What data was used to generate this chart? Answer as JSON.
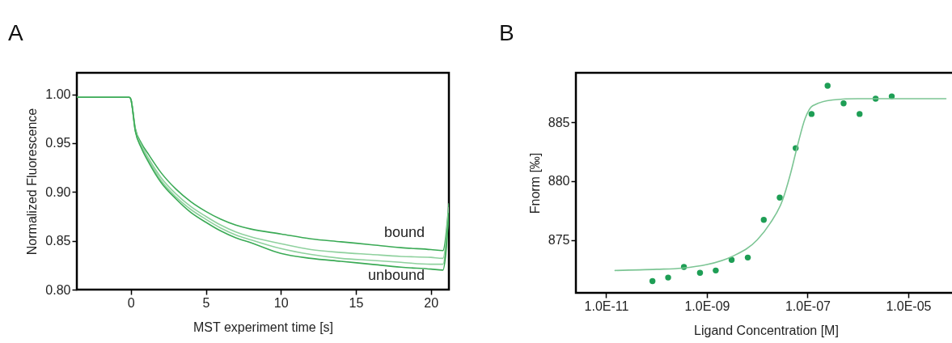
{
  "chart_data": [
    {
      "type": "line",
      "title": "A",
      "xlabel": "MST experiment time [s]",
      "ylabel": "Normalized Fluorescence",
      "x": [
        -3.6,
        -0.1,
        0,
        0.3,
        0.7,
        1.2,
        2,
        3,
        4,
        5,
        6,
        7,
        8,
        10,
        12,
        14,
        16,
        18,
        20,
        20.8,
        21.2
      ],
      "series": [
        {
          "color": "#3aaa55",
          "values": [
            0.997,
            0.997,
            0.995,
            0.965,
            0.95,
            0.938,
            0.92,
            0.903,
            0.89,
            0.88,
            0.872,
            0.866,
            0.862,
            0.857,
            0.852,
            0.849,
            0.846,
            0.843,
            0.841,
            0.84,
            0.888
          ]
        },
        {
          "color": "#8fd19e",
          "values": [
            0.997,
            0.997,
            0.995,
            0.963,
            0.948,
            0.934,
            0.915,
            0.898,
            0.885,
            0.875,
            0.866,
            0.859,
            0.854,
            0.847,
            0.841,
            0.838,
            0.836,
            0.834,
            0.833,
            0.832,
            0.884
          ]
        },
        {
          "color": "#8fd19e",
          "values": [
            0.997,
            0.997,
            0.995,
            0.963,
            0.946,
            0.932,
            0.912,
            0.895,
            0.882,
            0.872,
            0.863,
            0.856,
            0.851,
            0.842,
            0.836,
            0.832,
            0.83,
            0.828,
            0.826,
            0.826,
            0.88
          ]
        },
        {
          "color": "#3aaa55",
          "values": [
            0.997,
            0.997,
            0.995,
            0.962,
            0.945,
            0.93,
            0.91,
            0.893,
            0.879,
            0.869,
            0.86,
            0.853,
            0.848,
            0.837,
            0.832,
            0.829,
            0.826,
            0.823,
            0.821,
            0.82,
            0.878
          ]
        }
      ],
      "xlim": [
        -3.6,
        21.2
      ],
      "xticks": [
        0,
        5,
        10,
        15,
        20
      ],
      "ylim": [
        0.8,
        1.022
      ],
      "yticks": [
        {
          "value": 0.8,
          "label": "0.80"
        },
        {
          "value": 0.85,
          "label": "0.85"
        },
        {
          "value": 0.9,
          "label": "0.90"
        },
        {
          "value": 0.95,
          "label": "0.95"
        },
        {
          "value": 1.0,
          "label": "1.00"
        }
      ],
      "annotations": [
        "bound",
        "unbound"
      ],
      "grid": false,
      "line_style": "solid"
    },
    {
      "type": "scatter",
      "title": "B",
      "xlabel": "Ligand Concentration [M]",
      "ylabel": "Fnorm [‰]",
      "log": "x",
      "series": [
        {
          "color": "#1e9e55",
          "marker": "circle",
          "x": [
            8.3e-11,
            1.7e-10,
            3.5e-10,
            7.3e-10,
            1.5e-09,
            3.1e-09,
            6.5e-09,
            1.35e-08,
            2.8e-08,
            5.8e-08,
            1.2e-07,
            2.5e-07,
            5.2e-07,
            1.08e-06,
            2.25e-06,
            4.7e-06
          ],
          "values": [
            871.5,
            871.8,
            872.7,
            872.2,
            872.4,
            873.3,
            873.5,
            876.7,
            878.6,
            882.8,
            885.7,
            888.1,
            886.6,
            885.7,
            887.0,
            887.2
          ]
        },
        {
          "type": "line",
          "color": "#7cc594",
          "line_style": "solid",
          "x": [
            1.5e-11,
            1e-10,
            3.2e-10,
            1e-09,
            3.2e-09,
            1e-08,
            1.8e-08,
            3.2e-08,
            4.5e-08,
            6.3e-08,
            8.9e-08,
            1.26e-07,
            3.2e-07,
            1e-06,
            5.6e-05
          ],
          "values": [
            872.4,
            872.5,
            872.6,
            872.9,
            873.6,
            875.0,
            876.4,
            878.4,
            880.5,
            883.0,
            885.3,
            886.4,
            886.9,
            887.0,
            887.0
          ]
        }
      ],
      "xlim": [
        2.5e-12,
        8.9e-05
      ],
      "xticks": [
        {
          "value": 1e-11,
          "label": "1.0E-11"
        },
        {
          "value": 1e-09,
          "label": "1.0E-09"
        },
        {
          "value": 1e-07,
          "label": "1.0E-07"
        },
        {
          "value": 1e-05,
          "label": "1.0E-05"
        }
      ],
      "ylim": [
        870.5,
        889.2
      ],
      "yticks": [
        875,
        880,
        885
      ],
      "grid": false
    }
  ]
}
